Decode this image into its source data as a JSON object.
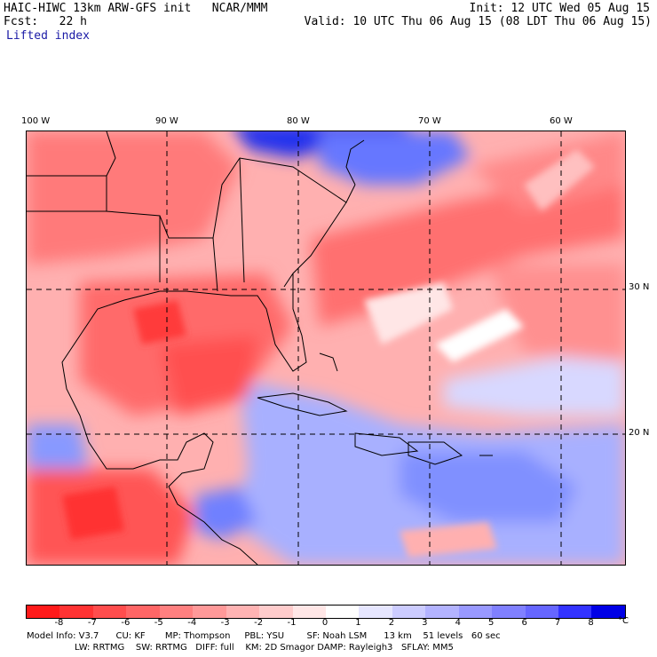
{
  "header": {
    "title_left": "HAIC-HIWC 13km ARW-GFS init   NCAR/MMM",
    "init": "Init: 12 UTC Wed 05 Aug 15",
    "fcst": "Fcst:   22 h",
    "valid": "Valid: 10 UTC Thu 06 Aug 15 (08 LDT Thu 06 Aug 15)",
    "field": "Lifted index"
  },
  "map": {
    "lon_labels": [
      "100 W",
      "90 W",
      "80 W",
      "70 W",
      "60 W"
    ],
    "lat_labels": [
      "30 N",
      "20 N"
    ],
    "field_units": "°C"
  },
  "colorbar": {
    "labels": [
      "-8",
      "-7",
      "-6",
      "-5",
      "-4",
      "-3",
      "-2",
      "-1",
      "0",
      "1",
      "2",
      "3",
      "4",
      "5",
      "6",
      "7",
      "8"
    ],
    "unit": "°C",
    "colors": [
      "#ff1a1a",
      "#ff3333",
      "#ff4d4d",
      "#ff6666",
      "#ff8080",
      "#ff9999",
      "#ffb3b3",
      "#ffcccc",
      "#ffe6e6",
      "#ffffff",
      "#e6e6ff",
      "#ccccff",
      "#b3b3ff",
      "#9999ff",
      "#8080ff",
      "#6666ff",
      "#3333ff",
      "#0000e6"
    ]
  },
  "footer": {
    "line1": "Model Info: V3.7      CU: KF       MP: Thompson     PBL: YSU        SF: Noah LSM      13 km    51 levels   60 sec",
    "line2": "                 LW: RRTMG    SW: RRTMG   DIFF: full    KM: 2D Smagor DAMP: Rayleigh3   SFLAY: MM5"
  }
}
